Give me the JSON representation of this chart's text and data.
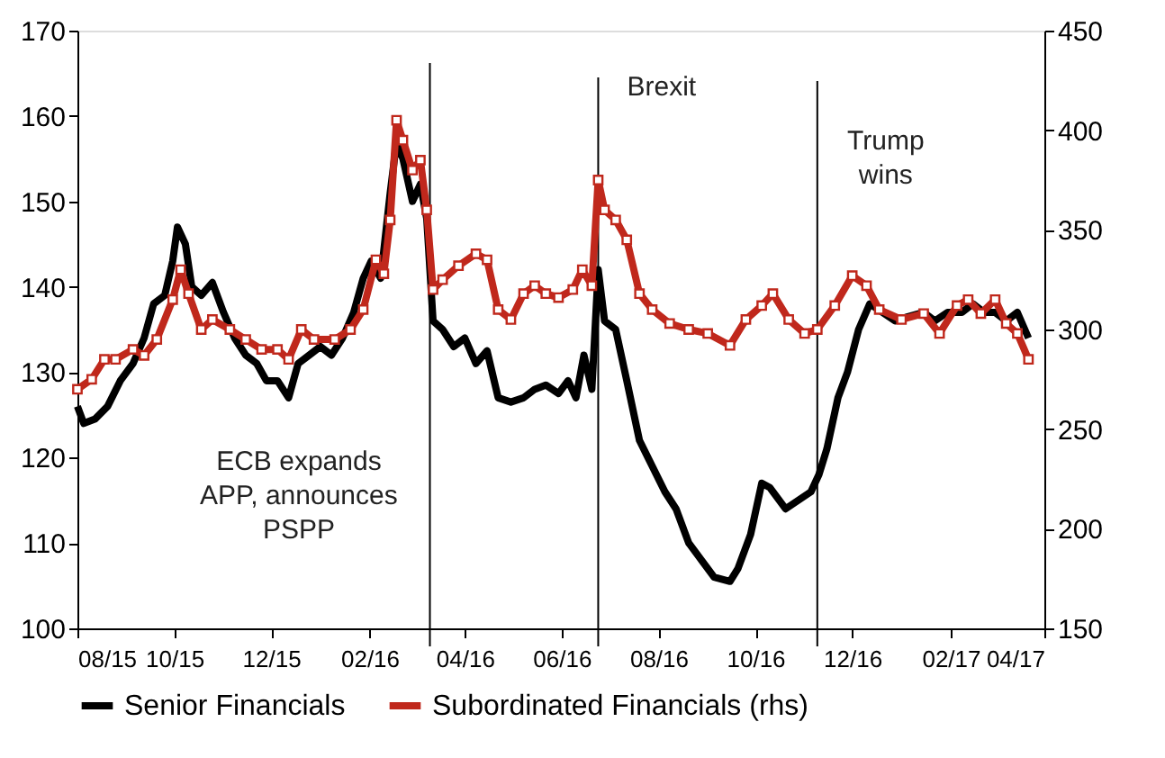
{
  "chart_data": {
    "type": "line",
    "x": [
      "2015-08-01",
      "2015-08-05",
      "2015-08-12",
      "2015-08-20",
      "2015-08-28",
      "2015-09-05",
      "2015-09-12",
      "2015-09-18",
      "2015-09-25",
      "2015-09-30",
      "2015-10-03",
      "2015-10-08",
      "2015-10-12",
      "2015-10-18",
      "2015-10-25",
      "2015-11-01",
      "2015-11-08",
      "2015-11-15",
      "2015-11-22",
      "2015-11-28",
      "2015-12-05",
      "2015-12-12",
      "2015-12-18",
      "2015-12-25",
      "2016-01-01",
      "2016-01-08",
      "2016-01-15",
      "2016-01-22",
      "2016-01-28",
      "2016-02-02",
      "2016-02-08",
      "2016-02-14",
      "2016-02-18",
      "2016-02-22",
      "2016-02-28",
      "2016-03-04",
      "2016-03-08",
      "2016-03-12",
      "2016-03-18",
      "2016-03-25",
      "2016-04-01",
      "2016-04-08",
      "2016-04-15",
      "2016-04-22",
      "2016-04-30",
      "2016-05-08",
      "2016-05-15",
      "2016-05-22",
      "2016-05-30",
      "2016-06-05",
      "2016-06-10",
      "2016-06-15",
      "2016-06-20",
      "2016-06-24",
      "2016-06-28",
      "2016-07-05",
      "2016-07-12",
      "2016-07-20",
      "2016-07-28",
      "2016-08-05",
      "2016-08-12",
      "2016-08-20",
      "2016-08-28",
      "2016-09-05",
      "2016-09-15",
      "2016-09-20",
      "2016-09-28",
      "2016-10-05",
      "2016-10-10",
      "2016-10-20",
      "2016-10-28",
      "2016-11-05",
      "2016-11-10",
      "2016-11-15",
      "2016-11-22",
      "2016-11-28",
      "2016-12-05",
      "2016-12-12",
      "2016-12-20",
      "2016-12-28",
      "2017-01-05",
      "2017-01-15",
      "2017-01-22",
      "2017-01-30",
      "2017-02-08",
      "2017-02-15",
      "2017-02-22",
      "2017-03-01",
      "2017-03-08",
      "2017-03-15",
      "2017-03-22"
    ],
    "series": [
      {
        "name": "Senior Financials",
        "color": "#000000",
        "values": [
          126,
          124,
          124.5,
          126,
          129,
          131,
          134,
          138,
          139,
          143,
          147,
          145,
          140,
          139,
          140.5,
          137,
          134,
          132,
          131,
          129,
          129,
          127,
          131,
          132,
          133,
          132,
          134,
          137,
          141,
          143,
          141,
          151,
          157,
          155,
          150,
          152,
          148,
          136,
          135,
          133,
          134,
          131,
          132.5,
          127,
          126.5,
          127,
          128,
          128.5,
          127.5,
          129,
          127,
          132,
          128,
          142,
          136,
          135,
          129,
          122,
          119,
          116,
          114,
          110,
          108,
          106,
          105.5,
          107,
          111,
          117,
          116.5,
          114,
          115,
          116,
          118,
          121,
          127,
          130,
          135,
          138,
          137,
          136,
          136.5,
          137,
          136,
          137,
          137,
          138,
          137,
          137,
          136,
          137,
          134
        ]
      },
      {
        "name": "Subordinated Financials (rhs)",
        "color": "#c0281c",
        "axis": "y2",
        "marker": "square",
        "x": [
          "2015-08-01",
          "2015-08-10",
          "2015-08-18",
          "2015-08-25",
          "2015-09-05",
          "2015-09-12",
          "2015-09-20",
          "2015-09-30",
          "2015-10-05",
          "2015-10-10",
          "2015-10-18",
          "2015-10-25",
          "2015-11-05",
          "2015-11-15",
          "2015-11-25",
          "2015-12-05",
          "2015-12-12",
          "2015-12-20",
          "2015-12-28",
          "2016-01-10",
          "2016-01-20",
          "2016-01-28",
          "2016-02-05",
          "2016-02-10",
          "2016-02-14",
          "2016-02-18",
          "2016-02-22",
          "2016-02-28",
          "2016-03-04",
          "2016-03-08",
          "2016-03-12",
          "2016-03-18",
          "2016-03-28",
          "2016-04-08",
          "2016-04-15",
          "2016-04-22",
          "2016-04-30",
          "2016-05-08",
          "2016-05-15",
          "2016-05-22",
          "2016-05-30",
          "2016-06-08",
          "2016-06-14",
          "2016-06-20",
          "2016-06-24",
          "2016-06-28",
          "2016-07-05",
          "2016-07-12",
          "2016-07-20",
          "2016-07-28",
          "2016-08-08",
          "2016-08-20",
          "2016-09-01",
          "2016-09-15",
          "2016-09-25",
          "2016-10-05",
          "2016-10-12",
          "2016-10-22",
          "2016-11-01",
          "2016-11-09",
          "2016-11-20",
          "2016-12-01",
          "2016-12-10",
          "2016-12-18",
          "2017-01-01",
          "2017-01-15",
          "2017-01-25",
          "2017-02-05",
          "2017-02-12",
          "2017-02-20",
          "2017-03-01",
          "2017-03-08",
          "2017-03-15",
          "2017-03-22"
        ],
        "values": [
          270,
          275,
          285,
          285,
          290,
          287,
          295,
          315,
          330,
          318,
          300,
          305,
          300,
          295,
          290,
          290,
          285,
          300,
          295,
          295,
          300,
          310,
          335,
          328,
          355,
          405,
          395,
          380,
          385,
          360,
          320,
          325,
          332,
          338,
          335,
          310,
          305,
          318,
          322,
          318,
          316,
          320,
          330,
          322,
          375,
          360,
          355,
          345,
          318,
          310,
          303,
          300,
          298,
          292,
          305,
          312,
          318,
          305,
          298,
          300,
          312,
          327,
          322,
          310,
          305,
          308,
          298,
          312,
          315,
          308,
          315,
          303,
          298,
          285
        ]
      }
    ],
    "xlim": [
      "2015-08-01",
      "2017-04-01"
    ],
    "xticks": [
      {
        "value": "2015-08-01",
        "label": "08/15"
      },
      {
        "value": "2015-10-01",
        "label": "10/15"
      },
      {
        "value": "2015-12-01",
        "label": "12/15"
      },
      {
        "value": "2016-02-01",
        "label": "02/16"
      },
      {
        "value": "2016-04-01",
        "label": "04/16"
      },
      {
        "value": "2016-06-01",
        "label": "06/16"
      },
      {
        "value": "2016-08-01",
        "label": "08/16"
      },
      {
        "value": "2016-10-01",
        "label": "10/16"
      },
      {
        "value": "2016-12-01",
        "label": "12/16"
      },
      {
        "value": "2017-02-01",
        "label": "02/17"
      },
      {
        "value": "2017-04-01",
        "label": "04/17"
      }
    ],
    "ylim": [
      100,
      170
    ],
    "yticks": [
      100,
      110,
      120,
      130,
      140,
      150,
      160,
      170
    ],
    "y2lim": [
      150,
      450
    ],
    "y2ticks": [
      150,
      200,
      250,
      300,
      350,
      400,
      450
    ],
    "ref_lines": [
      {
        "axis": "x",
        "value": "2016-03-10",
        "label": "ECB expands\nAPP, announces\nPSPP",
        "color": "#000000"
      },
      {
        "axis": "x",
        "value": "2016-06-24",
        "label": "Brexit",
        "color": "#000000"
      },
      {
        "axis": "x",
        "value": "2016-11-09",
        "label": "Trump\nwins",
        "color": "#000000"
      }
    ],
    "grid": false,
    "legend": "bottom",
    "line_style": "solid"
  }
}
